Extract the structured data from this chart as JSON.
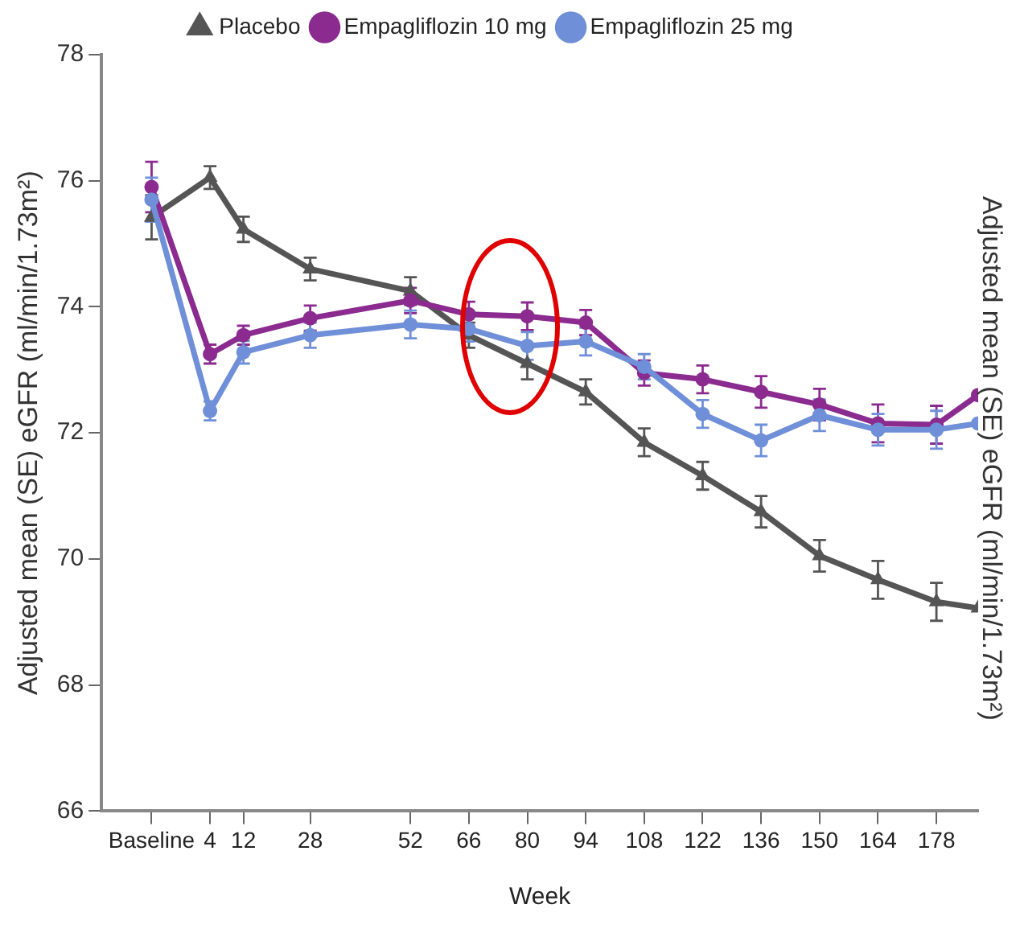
{
  "chart_data": {
    "type": "line",
    "xlabel": "Week",
    "ylabel": "Adjusted mean (SE) eGFR (ml/min/1.73m²)",
    "y2label": "Adjusted mean (SE) eGFR (ml/min/1.73m²)",
    "x": [
      -10,
      4,
      12,
      28,
      52,
      66,
      80,
      94,
      108,
      122,
      136,
      150,
      164,
      178,
      188
    ],
    "xlim": [
      -22,
      188
    ],
    "xticks": [
      {
        "value": -10,
        "label": "Baseline"
      },
      4,
      12,
      28,
      52,
      66,
      80,
      94,
      108,
      122,
      136,
      150,
      164,
      178
    ],
    "ylim": [
      66,
      78
    ],
    "yticks": [
      66,
      68,
      70,
      72,
      74,
      76,
      78
    ],
    "grid": false,
    "legend": "top",
    "line_style": "solid",
    "series": [
      {
        "name": "Placebo",
        "color": "#555555",
        "marker": "triangle",
        "values": [
          75.42,
          76.05,
          75.23,
          74.6,
          74.25,
          73.55,
          73.1,
          72.65,
          71.85,
          71.32,
          70.75,
          70.05,
          69.67,
          69.32,
          69.22
        ],
        "errors": [
          0.35,
          0.18,
          0.2,
          0.18,
          0.22,
          0.2,
          0.25,
          0.2,
          0.22,
          0.22,
          0.25,
          0.25,
          0.3,
          0.3,
          null
        ]
      },
      {
        "name": "Empagliflozin 10 mg",
        "color": "#8b2a8f",
        "marker": "circle",
        "values": [
          75.9,
          73.25,
          73.55,
          73.82,
          74.1,
          73.88,
          73.85,
          73.75,
          72.95,
          72.85,
          72.65,
          72.45,
          72.15,
          72.13,
          72.6
        ],
        "errors": [
          0.4,
          0.15,
          0.15,
          0.2,
          0.2,
          0.2,
          0.22,
          0.2,
          0.2,
          0.22,
          0.25,
          0.25,
          0.3,
          0.3,
          null
        ]
      },
      {
        "name": "Empagliflozin 25 mg",
        "color": "#6f8fd8",
        "marker": "circle",
        "values": [
          75.7,
          72.35,
          73.28,
          73.55,
          73.72,
          73.65,
          73.38,
          73.45,
          73.05,
          72.3,
          71.88,
          72.28,
          72.05,
          72.05,
          72.15
        ],
        "errors": [
          0.35,
          0.15,
          0.18,
          0.2,
          0.22,
          0.2,
          0.22,
          0.22,
          0.2,
          0.22,
          0.25,
          0.25,
          0.25,
          0.3,
          null
        ]
      }
    ]
  }
}
